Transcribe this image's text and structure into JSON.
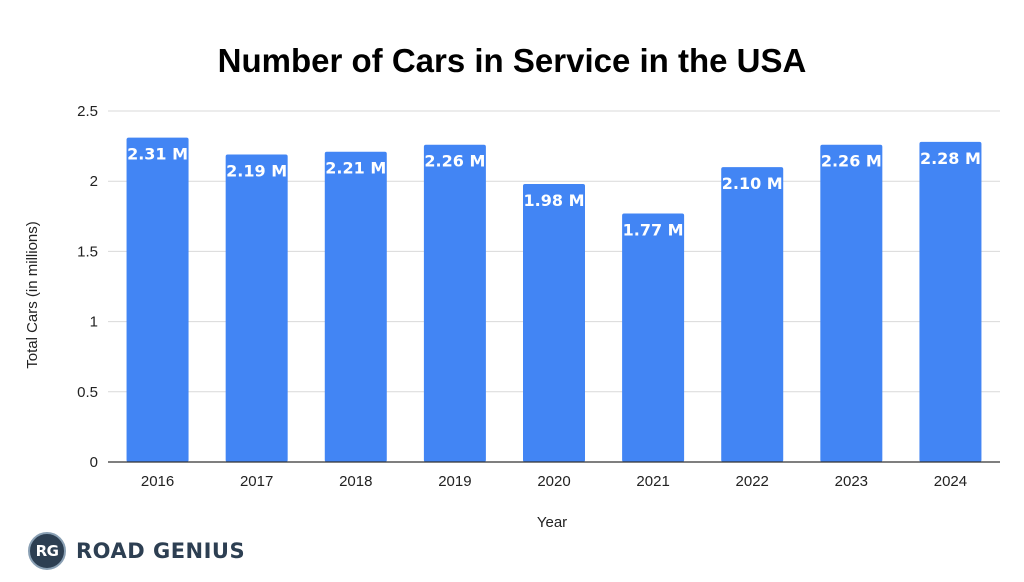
{
  "chart_data": {
    "type": "bar",
    "title": "Number of Cars in Service in the USA",
    "xlabel": "Year",
    "ylabel": "Total Cars (in millions)",
    "categories": [
      "2016",
      "2017",
      "2018",
      "2019",
      "2020",
      "2021",
      "2022",
      "2023",
      "2024"
    ],
    "values": [
      2.31,
      2.19,
      2.21,
      2.26,
      1.98,
      1.77,
      2.1,
      2.26,
      2.28
    ],
    "data_labels": [
      "2.31 M",
      "2.19 M",
      "2.21 M",
      "2.26 M",
      "1.98 M",
      "1.77 M",
      "2.10 M",
      "2.26 M",
      "2.28 M"
    ],
    "ylim": [
      0,
      2.5
    ],
    "yticks": [
      0,
      0.5,
      1,
      1.5,
      2,
      2.5
    ],
    "ytick_labels": [
      "0",
      "0.5",
      "1",
      "1.5",
      "2",
      "2.5"
    ],
    "grid": true,
    "bar_color": "#4285f4"
  },
  "branding": {
    "logo_initials": "RG",
    "logo_text": "ROAD GENIUS"
  }
}
